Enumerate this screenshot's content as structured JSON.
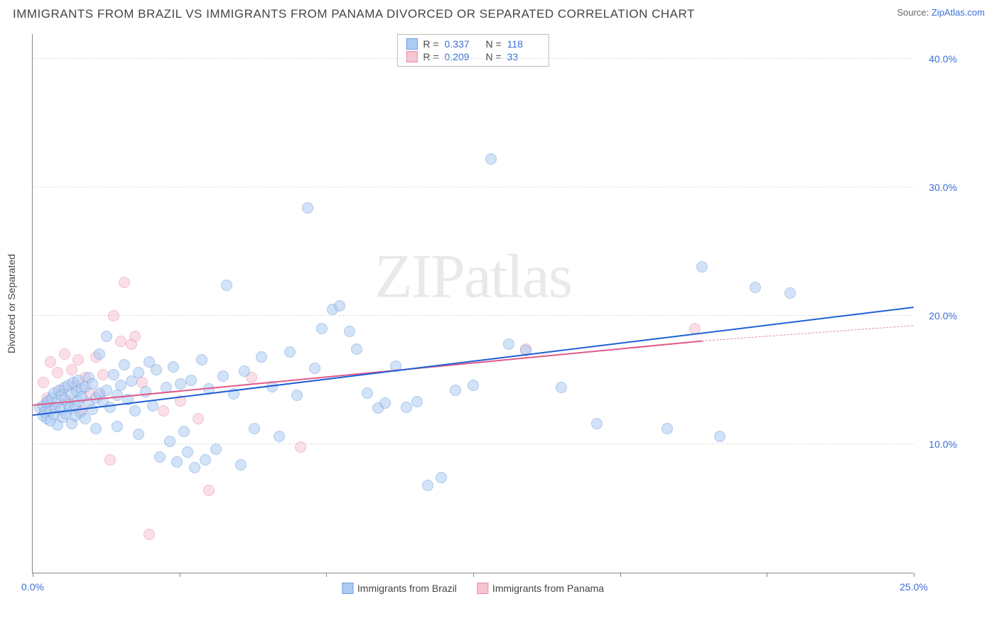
{
  "title": "IMMIGRANTS FROM BRAZIL VS IMMIGRANTS FROM PANAMA DIVORCED OR SEPARATED CORRELATION CHART",
  "source_prefix": "Source: ",
  "source_link": "ZipAtlas.com",
  "ylabel": "Divorced or Separated",
  "watermark": "ZIPatlas",
  "chart": {
    "type": "scatter",
    "xlim": [
      0,
      25
    ],
    "ylim": [
      0,
      42
    ],
    "xtick_positions": [
      0,
      4.17,
      8.33,
      12.5,
      16.67,
      20.83,
      25
    ],
    "xtick_labels": {
      "0": "0.0%",
      "25": "25.0%"
    },
    "ytick_positions": [
      10,
      20,
      30,
      40
    ],
    "ytick_labels": [
      "10.0%",
      "20.0%",
      "30.0%",
      "40.0%"
    ],
    "grid_color": "#dddddd",
    "axis_color": "#888888",
    "background_color": "#ffffff",
    "label_color": "#3b6fd6",
    "marker_radius": 8,
    "marker_border_width": 1.2,
    "series": [
      {
        "name": "Immigrants from Brazil",
        "color_fill": "#aeccf2",
        "color_stroke": "#6a9de0",
        "fill_opacity": 0.55,
        "R": "0.337",
        "N": "118",
        "trend": {
          "x1": 0,
          "y1": 12.2,
          "x2": 25,
          "y2": 20.6,
          "color": "#1f5fd6",
          "width": 2.2,
          "dash": false
        },
        "points": [
          [
            0.2,
            12.8
          ],
          [
            0.3,
            12.2
          ],
          [
            0.3,
            13.0
          ],
          [
            0.35,
            12.5
          ],
          [
            0.4,
            13.2
          ],
          [
            0.4,
            12.0
          ],
          [
            0.45,
            13.4
          ],
          [
            0.5,
            12.6
          ],
          [
            0.5,
            11.8
          ],
          [
            0.55,
            13.6
          ],
          [
            0.6,
            12.3
          ],
          [
            0.6,
            14.0
          ],
          [
            0.65,
            12.9
          ],
          [
            0.7,
            13.3
          ],
          [
            0.7,
            11.5
          ],
          [
            0.75,
            14.2
          ],
          [
            0.8,
            12.7
          ],
          [
            0.8,
            13.8
          ],
          [
            0.85,
            12.1
          ],
          [
            0.9,
            13.5
          ],
          [
            0.9,
            14.4
          ],
          [
            0.95,
            12.4
          ],
          [
            1.0,
            13.1
          ],
          [
            1.0,
            14.6
          ],
          [
            1.05,
            12.8
          ],
          [
            1.1,
            13.9
          ],
          [
            1.1,
            11.6
          ],
          [
            1.15,
            14.8
          ],
          [
            1.2,
            13.0
          ],
          [
            1.2,
            12.2
          ],
          [
            1.25,
            14.1
          ],
          [
            1.3,
            13.4
          ],
          [
            1.3,
            15.0
          ],
          [
            1.35,
            12.5
          ],
          [
            1.4,
            14.3
          ],
          [
            1.4,
            13.7
          ],
          [
            1.5,
            12.0
          ],
          [
            1.5,
            14.5
          ],
          [
            1.6,
            13.2
          ],
          [
            1.6,
            15.2
          ],
          [
            1.7,
            12.7
          ],
          [
            1.7,
            14.7
          ],
          [
            1.8,
            13.6
          ],
          [
            1.8,
            11.2
          ],
          [
            1.9,
            14.0
          ],
          [
            1.9,
            17.0
          ],
          [
            2.0,
            13.3
          ],
          [
            2.1,
            14.2
          ],
          [
            2.1,
            18.4
          ],
          [
            2.2,
            12.9
          ],
          [
            2.3,
            15.4
          ],
          [
            2.4,
            13.8
          ],
          [
            2.4,
            11.4
          ],
          [
            2.5,
            14.6
          ],
          [
            2.6,
            16.2
          ],
          [
            2.7,
            13.5
          ],
          [
            2.8,
            14.9
          ],
          [
            2.9,
            12.6
          ],
          [
            3.0,
            15.6
          ],
          [
            3.0,
            10.8
          ],
          [
            3.2,
            14.1
          ],
          [
            3.3,
            16.4
          ],
          [
            3.4,
            13.0
          ],
          [
            3.5,
            15.8
          ],
          [
            3.6,
            9.0
          ],
          [
            3.8,
            14.4
          ],
          [
            3.9,
            10.2
          ],
          [
            4.0,
            16.0
          ],
          [
            4.1,
            8.6
          ],
          [
            4.2,
            14.7
          ],
          [
            4.3,
            11.0
          ],
          [
            4.4,
            9.4
          ],
          [
            4.5,
            15.0
          ],
          [
            4.6,
            8.2
          ],
          [
            4.8,
            16.6
          ],
          [
            4.9,
            8.8
          ],
          [
            5.0,
            14.3
          ],
          [
            5.2,
            9.6
          ],
          [
            5.4,
            15.3
          ],
          [
            5.5,
            22.4
          ],
          [
            5.7,
            13.9
          ],
          [
            5.9,
            8.4
          ],
          [
            6.0,
            15.7
          ],
          [
            6.3,
            11.2
          ],
          [
            6.5,
            16.8
          ],
          [
            6.8,
            14.5
          ],
          [
            7.0,
            10.6
          ],
          [
            7.3,
            17.2
          ],
          [
            7.5,
            13.8
          ],
          [
            7.8,
            28.4
          ],
          [
            8.0,
            15.9
          ],
          [
            8.2,
            19.0
          ],
          [
            8.5,
            20.5
          ],
          [
            8.7,
            20.8
          ],
          [
            9.0,
            18.8
          ],
          [
            9.2,
            17.4
          ],
          [
            9.5,
            14.0
          ],
          [
            9.8,
            12.8
          ],
          [
            10.0,
            13.2
          ],
          [
            10.3,
            16.1
          ],
          [
            10.6,
            12.9
          ],
          [
            10.9,
            13.3
          ],
          [
            11.2,
            6.8
          ],
          [
            11.6,
            7.4
          ],
          [
            12.0,
            14.2
          ],
          [
            12.5,
            14.6
          ],
          [
            13.0,
            32.2
          ],
          [
            13.5,
            17.8
          ],
          [
            14.0,
            17.3
          ],
          [
            15.0,
            14.4
          ],
          [
            16.0,
            11.6
          ],
          [
            18.0,
            11.2
          ],
          [
            19.0,
            23.8
          ],
          [
            19.5,
            10.6
          ],
          [
            20.5,
            22.2
          ],
          [
            21.5,
            21.8
          ]
        ]
      },
      {
        "name": "Immigrants from Panama",
        "color_fill": "#f6c5d2",
        "color_stroke": "#e88ba5",
        "fill_opacity": 0.55,
        "R": "0.209",
        "N": "33",
        "trend_solid": {
          "x1": 0,
          "y1": 13.0,
          "x2": 19,
          "y2": 18.0,
          "color": "#e05a8a",
          "width": 2,
          "dash": false
        },
        "trend_dash": {
          "x1": 19,
          "y1": 18.0,
          "x2": 25,
          "y2": 19.2,
          "color": "#e88ba5",
          "width": 1.4,
          "dash": true
        },
        "points": [
          [
            0.3,
            14.8
          ],
          [
            0.4,
            13.6
          ],
          [
            0.5,
            16.4
          ],
          [
            0.6,
            12.8
          ],
          [
            0.7,
            15.6
          ],
          [
            0.8,
            14.2
          ],
          [
            0.9,
            17.0
          ],
          [
            1.0,
            13.4
          ],
          [
            1.1,
            15.8
          ],
          [
            1.2,
            14.6
          ],
          [
            1.3,
            16.6
          ],
          [
            1.4,
            12.6
          ],
          [
            1.5,
            15.2
          ],
          [
            1.6,
            14.0
          ],
          [
            1.8,
            16.8
          ],
          [
            1.9,
            13.8
          ],
          [
            2.0,
            15.4
          ],
          [
            2.2,
            8.8
          ],
          [
            2.3,
            20.0
          ],
          [
            2.5,
            18.0
          ],
          [
            2.6,
            22.6
          ],
          [
            2.8,
            17.8
          ],
          [
            2.9,
            18.4
          ],
          [
            3.1,
            14.8
          ],
          [
            3.3,
            3.0
          ],
          [
            3.7,
            12.6
          ],
          [
            4.2,
            13.4
          ],
          [
            4.7,
            12.0
          ],
          [
            5.0,
            6.4
          ],
          [
            6.2,
            15.2
          ],
          [
            7.6,
            9.8
          ],
          [
            14.0,
            17.4
          ],
          [
            18.8,
            19.0
          ]
        ]
      }
    ]
  }
}
